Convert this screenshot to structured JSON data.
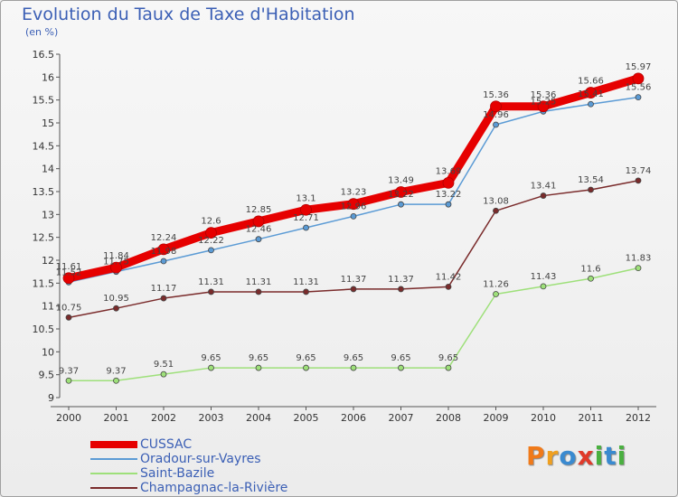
{
  "title": "Evolution du Taux de Taxe d'Habitation",
  "subtitle": "(en %)",
  "logo": {
    "text": "Proxiti",
    "letters": [
      {
        "ch": "P",
        "color": "#f07a1a"
      },
      {
        "ch": "r",
        "color": "#f0a020"
      },
      {
        "ch": "o",
        "color": "#3a8ad0"
      },
      {
        "ch": "x",
        "color": "#e03a2a"
      },
      {
        "ch": "i",
        "color": "#4ab040"
      },
      {
        "ch": "t",
        "color": "#3a8ad0"
      },
      {
        "ch": "i",
        "color": "#4ab040"
      }
    ]
  },
  "chart_data": {
    "type": "line",
    "x": [
      "2000",
      "2001",
      "2002",
      "2003",
      "2004",
      "2005",
      "2006",
      "2007",
      "2008",
      "2009",
      "2010",
      "2011",
      "2012"
    ],
    "ylim": [
      9,
      16.5
    ],
    "yticks": [
      "9",
      "9.5",
      "10",
      "10.5",
      "11",
      "11.5",
      "12",
      "12.5",
      "13",
      "13.5",
      "14",
      "14.5",
      "15",
      "15.5",
      "16",
      "16.5"
    ],
    "grid": false,
    "series": [
      {
        "name": "CUSSAC",
        "color": "#e60000",
        "width": 9,
        "values": [
          11.61,
          11.84,
          12.24,
          12.6,
          12.85,
          13.1,
          13.23,
          13.49,
          13.69,
          15.36,
          15.36,
          15.66,
          15.97
        ],
        "labels": [
          "11.61",
          "11.84",
          "12.24",
          "12.6",
          "12.85",
          "13.1",
          "13.23",
          "13.49",
          "13.69",
          "15.36",
          "15.36",
          "15.66",
          "15.97"
        ]
      },
      {
        "name": "Oradour-sur-Vayres",
        "color": "#5b9bd5",
        "width": 1.5,
        "values": [
          11.52,
          11.75,
          11.98,
          12.22,
          12.46,
          12.71,
          12.96,
          13.22,
          13.22,
          14.96,
          15.25,
          15.41,
          15.56
        ],
        "labels": [
          "11.52",
          "11.75",
          "11.98",
          "12.22",
          "12.46",
          "12.71",
          "12.96",
          "13.22",
          "13.22",
          "14.96",
          "15.25",
          "15.41",
          "15.56"
        ]
      },
      {
        "name": "Saint-Bazile",
        "color": "#9ee07a",
        "width": 1.5,
        "values": [
          9.37,
          9.37,
          9.51,
          9.65,
          9.65,
          9.65,
          9.65,
          9.65,
          9.65,
          11.26,
          11.43,
          11.6,
          11.83
        ],
        "labels": [
          "9.37",
          "9.37",
          "9.51",
          "9.65",
          "9.65",
          "9.65",
          "9.65",
          "9.65",
          "9.65",
          "11.26",
          "11.43",
          "11.6",
          "11.83"
        ]
      },
      {
        "name": "Champagnac-la-Rivière",
        "color": "#7a2b2b",
        "width": 1.5,
        "values": [
          10.75,
          10.95,
          11.17,
          11.31,
          11.31,
          11.31,
          11.37,
          11.37,
          11.42,
          13.08,
          13.41,
          13.54,
          13.74
        ],
        "labels": [
          "10.75",
          "10.95",
          "11.17",
          "11.31",
          "11.31",
          "11.31",
          "11.37",
          "11.37",
          "11.42",
          "13.08",
          "13.41",
          "13.54",
          "13.74"
        ]
      }
    ],
    "legend": "bottom-left"
  }
}
